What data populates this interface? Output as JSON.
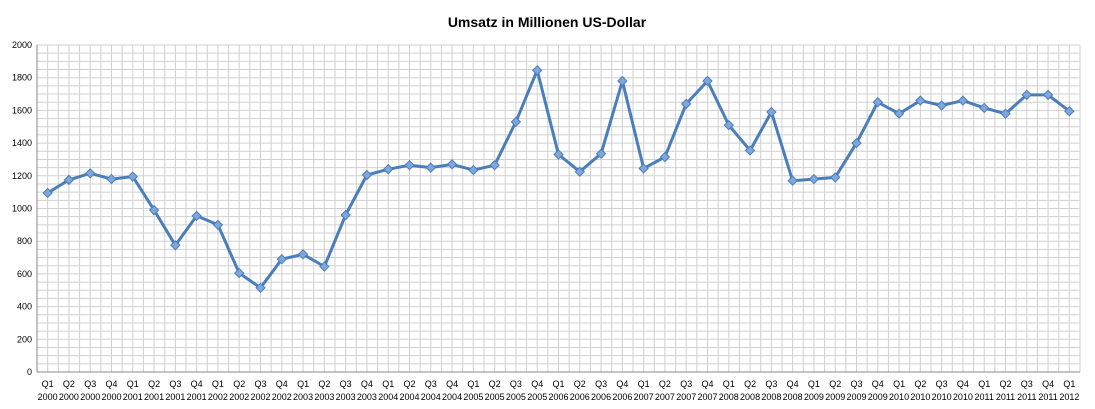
{
  "chart_data": {
    "type": "line",
    "title": "Umsatz in Millionen US-Dollar",
    "xlabel": "",
    "ylabel": "",
    "ylim": [
      0,
      2000
    ],
    "yticks": [
      0,
      200,
      400,
      600,
      800,
      1000,
      1200,
      1400,
      1600,
      1800,
      2000
    ],
    "grid": true,
    "legend": "none",
    "colors": {
      "line": "#4a7ebb",
      "marker": "#7fa7dd",
      "grid": "#d0d0d0"
    },
    "categories": [
      [
        "Q1",
        "2000"
      ],
      [
        "Q2",
        "2000"
      ],
      [
        "Q3",
        "2000"
      ],
      [
        "Q4",
        "2000"
      ],
      [
        "Q1",
        "2001"
      ],
      [
        "Q2",
        "2001"
      ],
      [
        "Q3",
        "2001"
      ],
      [
        "Q4",
        "2001"
      ],
      [
        "Q1",
        "2002"
      ],
      [
        "Q2",
        "2002"
      ],
      [
        "Q3",
        "2002"
      ],
      [
        "Q4",
        "2002"
      ],
      [
        "Q1",
        "2003"
      ],
      [
        "Q2",
        "2003"
      ],
      [
        "Q3",
        "2003"
      ],
      [
        "Q4",
        "2003"
      ],
      [
        "Q1",
        "2004"
      ],
      [
        "Q2",
        "2004"
      ],
      [
        "Q3",
        "2004"
      ],
      [
        "Q4",
        "2004"
      ],
      [
        "Q1",
        "2005"
      ],
      [
        "Q2",
        "2005"
      ],
      [
        "Q3",
        "2005"
      ],
      [
        "Q4",
        "2005"
      ],
      [
        "Q1",
        "2006"
      ],
      [
        "Q2",
        "2006"
      ],
      [
        "Q3",
        "2006"
      ],
      [
        "Q4",
        "2006"
      ],
      [
        "Q1",
        "2007"
      ],
      [
        "Q2",
        "2007"
      ],
      [
        "Q3",
        "2007"
      ],
      [
        "Q4",
        "2007"
      ],
      [
        "Q1",
        "2008"
      ],
      [
        "Q2",
        "2008"
      ],
      [
        "Q3",
        "2008"
      ],
      [
        "Q4",
        "2008"
      ],
      [
        "Q1",
        "2009"
      ],
      [
        "Q2",
        "2009"
      ],
      [
        "Q3",
        "2009"
      ],
      [
        "Q4",
        "2009"
      ],
      [
        "Q1",
        "2010"
      ],
      [
        "Q2",
        "2010"
      ],
      [
        "Q3",
        "2010"
      ],
      [
        "Q4",
        "2010"
      ],
      [
        "Q1",
        "2011"
      ],
      [
        "Q2",
        "2011"
      ],
      [
        "Q3",
        "2011"
      ],
      [
        "Q4",
        "2011"
      ],
      [
        "Q1",
        "2012"
      ]
    ],
    "series": [
      {
        "values": [
          1095,
          1175,
          1215,
          1180,
          1195,
          990,
          775,
          955,
          900,
          605,
          515,
          690,
          720,
          645,
          960,
          1205,
          1240,
          1265,
          1250,
          1270,
          1235,
          1265,
          1530,
          1845,
          1330,
          1225,
          1335,
          1780,
          1245,
          1315,
          1640,
          1780,
          1510,
          1355,
          1590,
          1170,
          1180,
          1190,
          1400,
          1650,
          1580,
          1660,
          1630,
          1660,
          1615,
          1580,
          1695,
          1695,
          1595
        ]
      }
    ]
  }
}
